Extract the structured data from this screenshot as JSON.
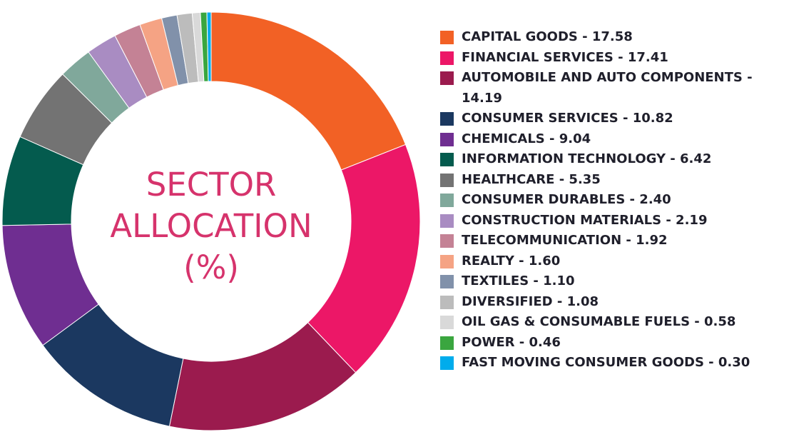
{
  "chart_data": {
    "type": "pie",
    "donut": true,
    "title_lines": [
      "SECTOR",
      "ALLOCATION",
      "(%)"
    ],
    "slices": [
      {
        "label": "CAPITAL GOODS",
        "legend_text": "CAPITAL GOODS - 17.58",
        "value": 17.58,
        "color": "#f26125"
      },
      {
        "label": "FINANCIAL SERVICES",
        "legend_text": "FINANCIAL SERVICES - 17.41",
        "value": 17.41,
        "color": "#ec1767"
      },
      {
        "label": "AUTOMOBILE AND AUTO COMPONENTS",
        "legend_text": "AUTOMOBILE AND AUTO COMPONENTS - 14.19",
        "value": 14.19,
        "color": "#9b1b4e"
      },
      {
        "label": "CONSUMER SERVICES",
        "legend_text": "CONSUMER SERVICES - 10.82",
        "value": 10.82,
        "color": "#1b3860"
      },
      {
        "label": "CHEMICALS",
        "legend_text": "CHEMICALS - 9.04",
        "value": 9.04,
        "color": "#6f2e91"
      },
      {
        "label": "INFORMATION TECHNOLOGY",
        "legend_text": "INFORMATION TECHNOLOGY - 6.42",
        "value": 6.42,
        "color": "#045b4e"
      },
      {
        "label": "HEALTHCARE",
        "legend_text": "HEALTHCARE - 5.35",
        "value": 5.35,
        "color": "#737373"
      },
      {
        "label": "CONSUMER DURABLES",
        "legend_text": "CONSUMER DURABLES - 2.40",
        "value": 2.4,
        "color": "#80a89b"
      },
      {
        "label": "CONSTRUCTION MATERIALS",
        "legend_text": "CONSTRUCTION MATERIALS - 2.19",
        "value": 2.19,
        "color": "#a98cc2"
      },
      {
        "label": "TELECOMMUNICATION",
        "legend_text": "TELECOMMUNICATION - 1.92",
        "value": 1.92,
        "color": "#c48295"
      },
      {
        "label": "REALTY",
        "legend_text": "REALTY - 1.60",
        "value": 1.6,
        "color": "#f5a384"
      },
      {
        "label": "TEXTILES",
        "legend_text": "TEXTILES - 1.10",
        "value": 1.1,
        "color": "#8191aa"
      },
      {
        "label": "DIVERSIFIED",
        "legend_text": "DIVERSIFIED - 1.08",
        "value": 1.08,
        "color": "#bcbcbc"
      },
      {
        "label": "OIL GAS & CONSUMABLE FUELS",
        "legend_text": "OIL GAS & CONSUMABLE FUELS - 0.58",
        "value": 0.58,
        "color": "#d9d9d9"
      },
      {
        "label": "POWER",
        "legend_text": "POWER  - 0.46",
        "value": 0.46,
        "color": "#3aa63f"
      },
      {
        "label": "FAST MOVING CONSUMER GOODS",
        "legend_text": "FAST MOVING CONSUMER GOODS  - 0.30",
        "value": 0.3,
        "color": "#00acec"
      }
    ]
  }
}
